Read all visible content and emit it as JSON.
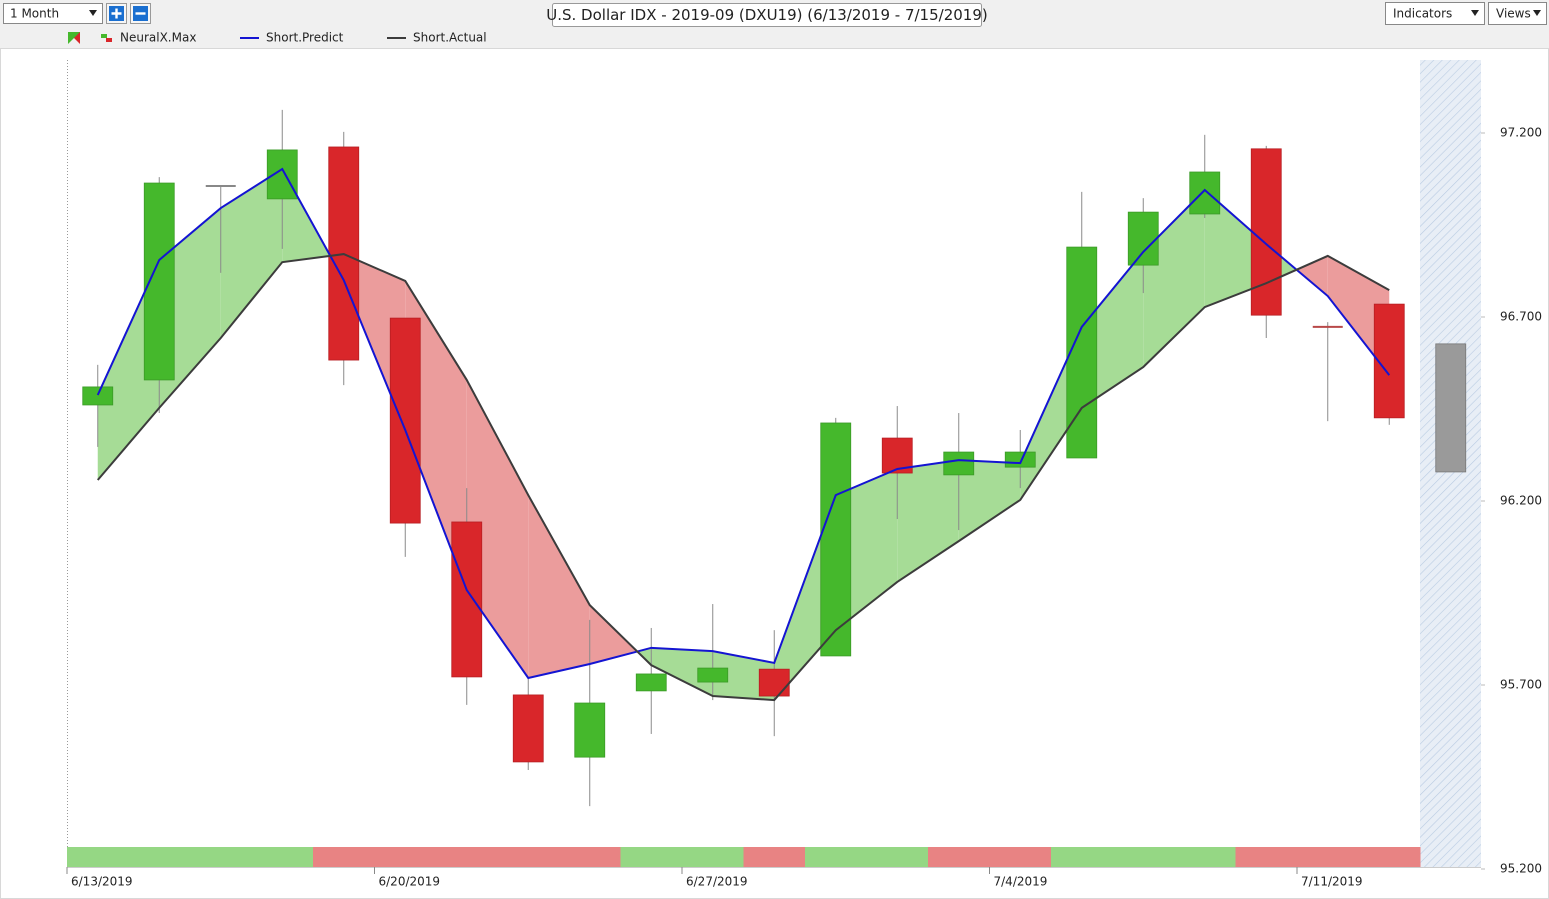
{
  "toolbar": {
    "period": "1 Month",
    "indicators": "Indicators",
    "views": "Views"
  },
  "chart_data": {
    "type": "candlestick",
    "title": "U.S. Dollar IDX - 2019-09 (DXU19) (6/13/2019 - 7/15/2019)",
    "categories": [
      "6/13/2019",
      null,
      null,
      null,
      null,
      "6/20/2019",
      null,
      null,
      null,
      null,
      "6/27/2019",
      null,
      null,
      null,
      null,
      "7/4/2019",
      null,
      null,
      null,
      null,
      "7/11/2019",
      null,
      null
    ],
    "candles": {
      "open": [
        96.461,
        96.529,
        97.056,
        97.021,
        97.162,
        96.697,
        96.143,
        95.673,
        95.504,
        95.684,
        95.708,
        95.743,
        95.779,
        96.371,
        96.271,
        96.292,
        96.317,
        96.841,
        96.98,
        97.157,
        96.673,
        96.735,
        null
      ],
      "high": [
        96.57,
        97.08,
        97.056,
        97.263,
        97.203,
        96.697,
        96.235,
        95.722,
        95.877,
        95.855,
        95.92,
        95.849,
        96.426,
        96.458,
        96.439,
        96.393,
        97.04,
        97.023,
        97.195,
        97.165,
        96.686,
        96.735,
        null
      ],
      "low": [
        96.347,
        96.439,
        96.82,
        96.885,
        96.515,
        96.048,
        95.646,
        95.469,
        95.371,
        95.567,
        95.659,
        95.561,
        95.779,
        96.151,
        96.121,
        96.235,
        96.317,
        96.765,
        96.969,
        96.643,
        96.417,
        96.407,
        null
      ],
      "close": [
        96.51,
        97.064,
        97.056,
        97.154,
        96.583,
        96.14,
        95.722,
        95.491,
        95.651,
        95.73,
        95.746,
        95.67,
        96.412,
        96.276,
        96.333,
        96.333,
        96.89,
        96.985,
        97.094,
        96.705,
        96.673,
        96.426,
        null
      ],
      "up_color": "#45b82c",
      "down_color": "#d9262a",
      "flat_colors": [
        "#888888",
        "#b84848"
      ],
      "wick_color": "#8a8a8a"
    },
    "series": [
      {
        "name": "Short.Predict",
        "color": "#1414d2",
        "values": [
          96.488,
          96.855,
          96.996,
          97.102,
          96.8,
          96.393,
          95.958,
          95.719,
          95.757,
          95.801,
          95.792,
          95.76,
          96.216,
          96.287,
          96.311,
          96.303,
          96.673,
          96.877,
          97.045,
          96.898,
          96.757,
          96.542,
          null
        ]
      },
      {
        "name": "Short.Actual",
        "color": "#3c3c3c",
        "values": [
          96.257,
          96.453,
          96.643,
          96.849,
          96.871,
          96.798,
          96.529,
          96.216,
          95.917,
          95.754,
          95.67,
          95.659,
          95.849,
          95.98,
          96.091,
          96.203,
          96.453,
          96.564,
          96.727,
          96.792,
          96.866,
          96.773,
          null
        ]
      }
    ],
    "fill_colors": {
      "above": "#a6dc96",
      "below": "#eb9c9c"
    },
    "signal": {
      "name": "NeuralX.Max",
      "values": [
        1,
        1,
        1,
        1,
        -1,
        -1,
        -1,
        -1,
        -1,
        1,
        1,
        -1,
        1,
        1,
        -1,
        -1,
        1,
        1,
        1,
        -1,
        -1,
        -1,
        null
      ],
      "up_color": "#95d784",
      "down_color": "#e88383"
    },
    "forecast": {
      "values": [
        96.279,
        96.627
      ],
      "color": "#9a9a9a"
    },
    "ylim": [
      95.2,
      97.4
    ],
    "yticks": [
      {
        "value": 95.2,
        "label": "95.200"
      },
      {
        "value": 95.7,
        "label": "95.700"
      },
      {
        "value": 96.2,
        "label": "96.200"
      },
      {
        "value": 96.7,
        "label": "96.700"
      },
      {
        "value": 97.2,
        "label": "97.200"
      }
    ]
  }
}
